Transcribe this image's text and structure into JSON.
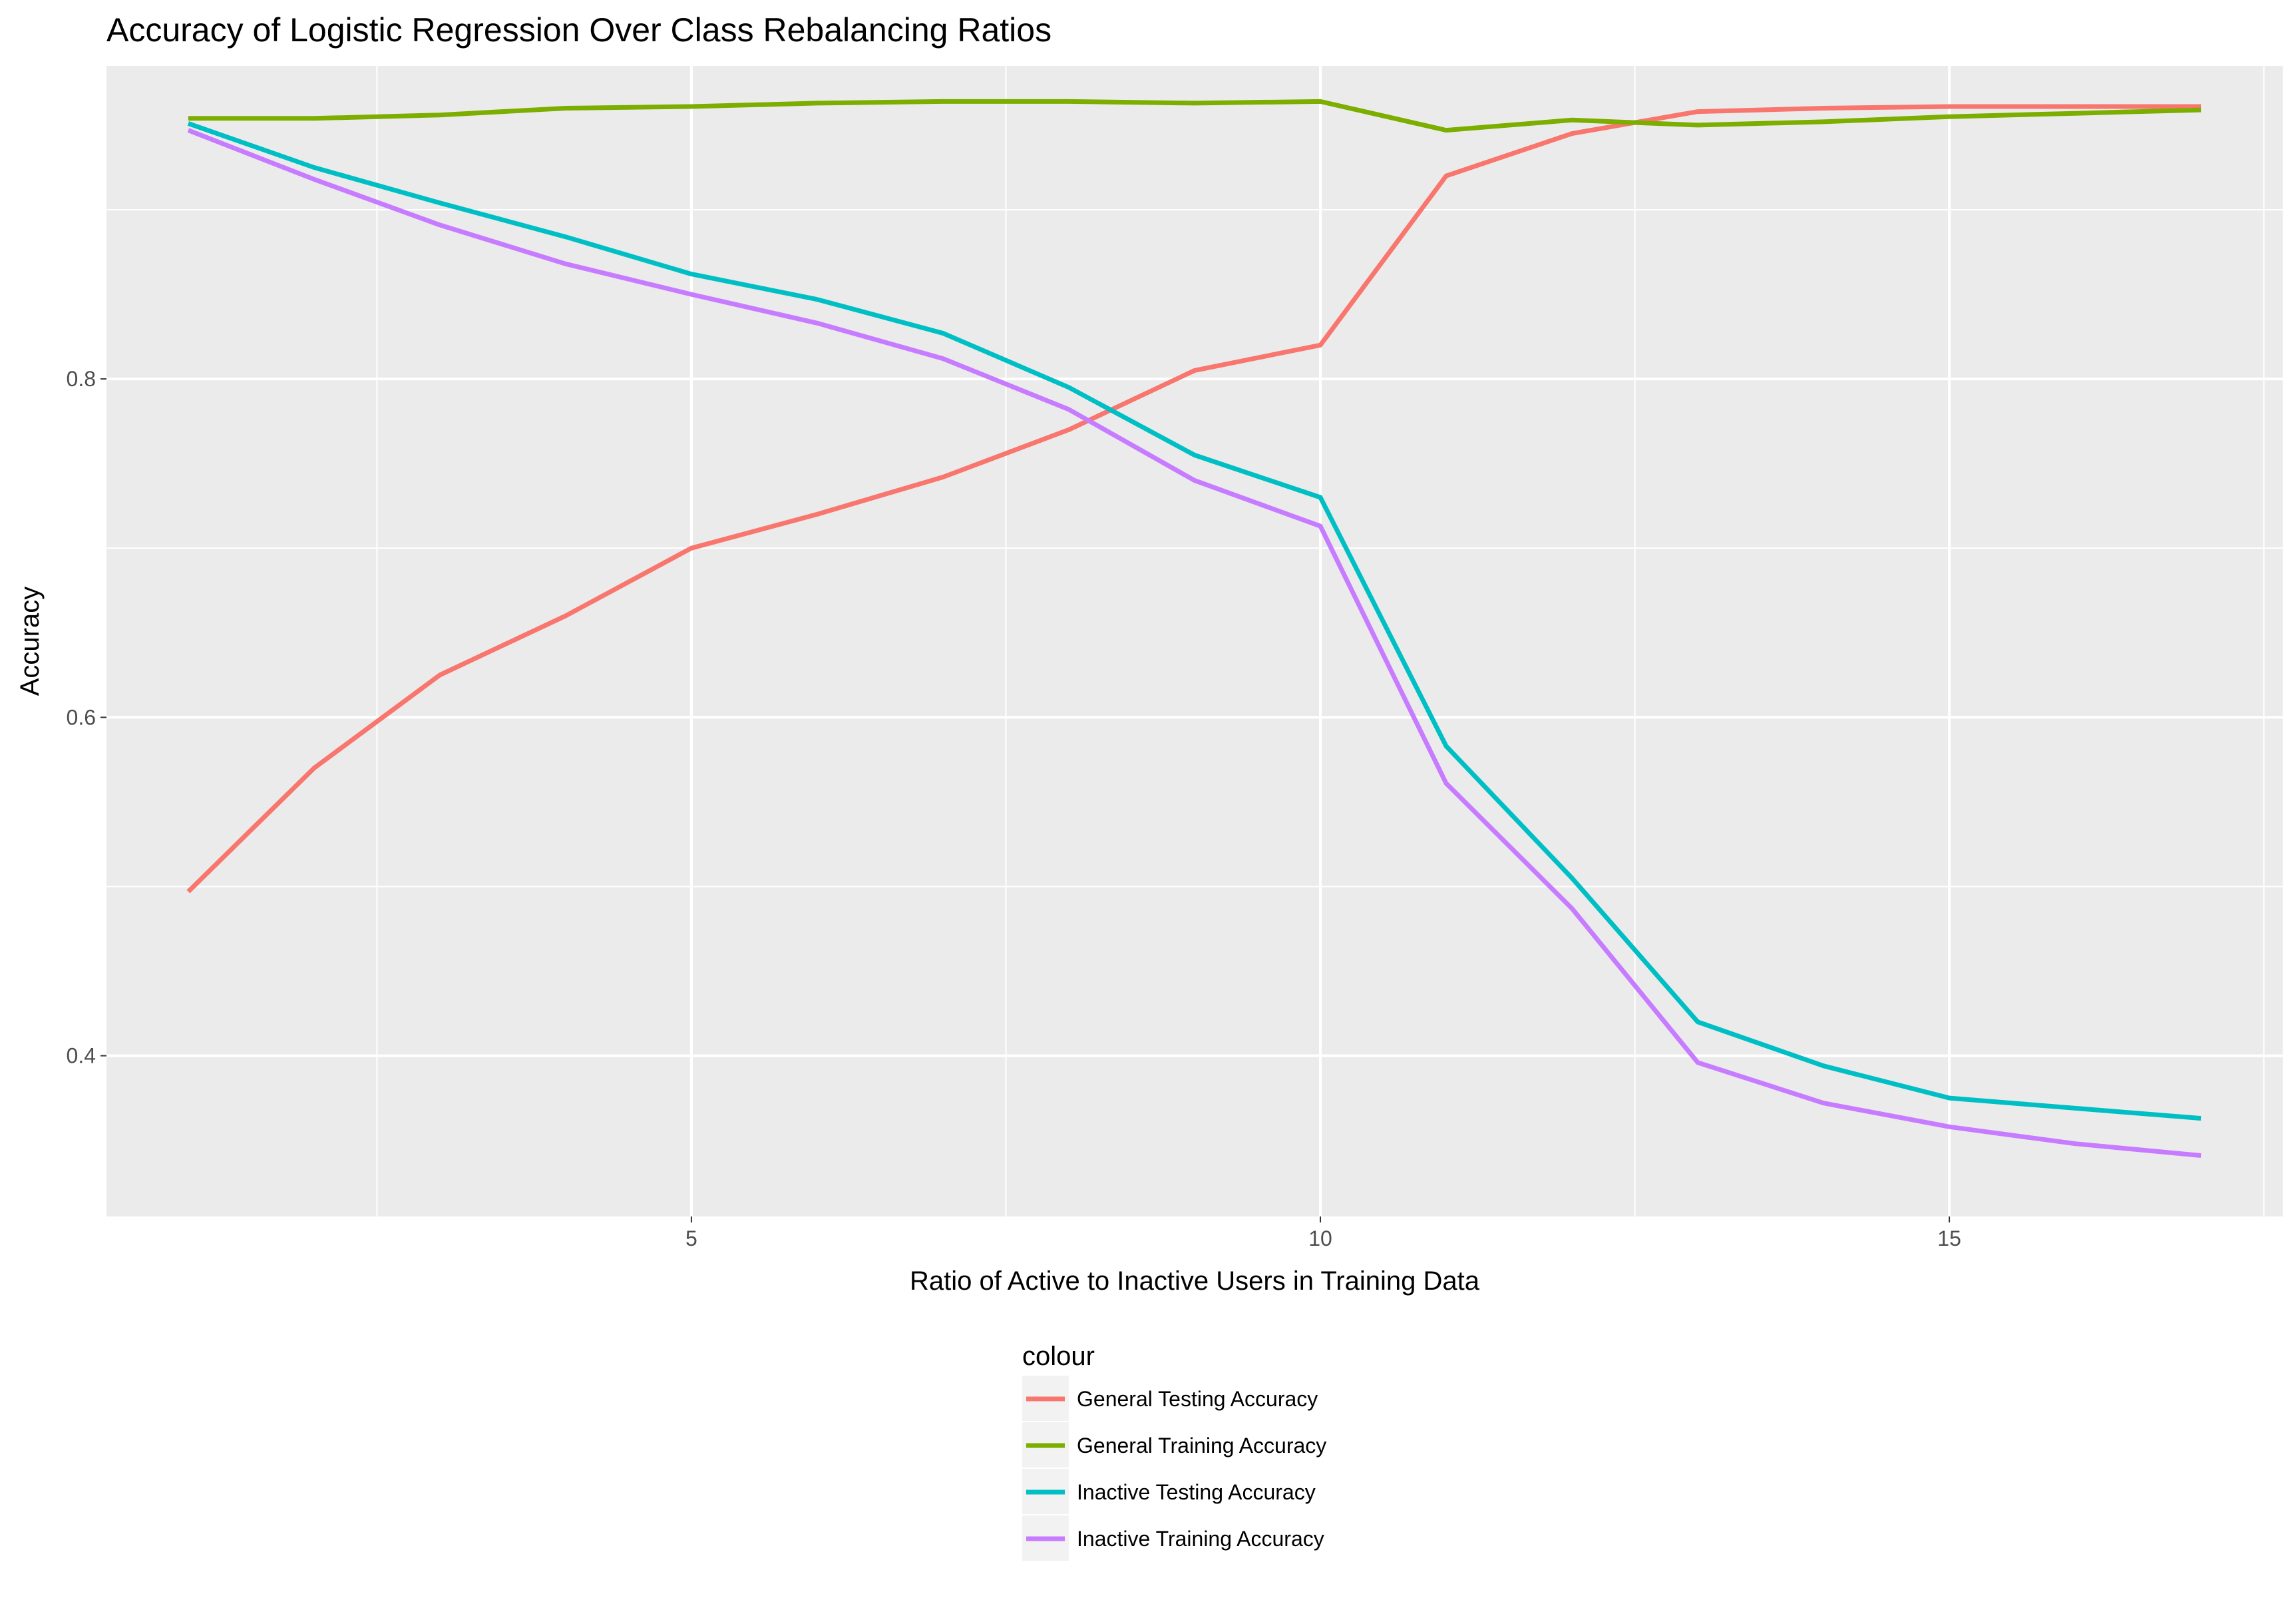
{
  "chart_data": {
    "type": "line",
    "title": "Accuracy of Logistic Regression Over Class Rebalancing Ratios",
    "xlabel": "Ratio of Active to Inactive Users in Training Data",
    "ylabel": "Accuracy",
    "xlim": [
      0.35,
      17.65
    ],
    "ylim": [
      0.305,
      0.985
    ],
    "x_ticks": [
      5,
      10,
      15
    ],
    "x_tick_labels": [
      "5",
      "10",
      "15"
    ],
    "x_minor_ticks": [
      2.5,
      7.5,
      12.5,
      17.5
    ],
    "y_ticks": [
      0.4,
      0.6,
      0.8
    ],
    "y_tick_labels": [
      "0.4",
      "0.6",
      "0.8"
    ],
    "y_minor_ticks": [
      0.3,
      0.5,
      0.7,
      0.9
    ],
    "grid": true,
    "panel_background": "#ebebeb",
    "legend_title": "colour",
    "legend_position": "bottom",
    "x": [
      1,
      2,
      3,
      4,
      5,
      6,
      7,
      8,
      9,
      10,
      11,
      12,
      13,
      14,
      15,
      16,
      17
    ],
    "series": [
      {
        "name": "General Testing Accuracy",
        "color": "#f8766d",
        "values": [
          0.497,
          0.57,
          0.625,
          0.66,
          0.7,
          0.72,
          0.742,
          0.77,
          0.805,
          0.82,
          0.92,
          0.945,
          0.958,
          0.96,
          0.961,
          0.961,
          0.961
        ]
      },
      {
        "name": "General Training Accuracy",
        "color": "#7cae00",
        "values": [
          0.954,
          0.954,
          0.956,
          0.96,
          0.961,
          0.963,
          0.964,
          0.964,
          0.963,
          0.964,
          0.947,
          0.953,
          0.95,
          0.952,
          0.955,
          0.957,
          0.959
        ]
      },
      {
        "name": "Inactive Testing Accuracy",
        "color": "#00bfc4",
        "values": [
          0.951,
          0.925,
          0.904,
          0.884,
          0.862,
          0.847,
          0.827,
          0.795,
          0.755,
          0.73,
          0.583,
          0.505,
          0.42,
          0.394,
          0.375,
          0.369,
          0.363
        ]
      },
      {
        "name": "Inactive Training Accuracy",
        "color": "#c77cff",
        "values": [
          0.947,
          0.918,
          0.891,
          0.868,
          0.85,
          0.833,
          0.812,
          0.782,
          0.74,
          0.713,
          0.561,
          0.487,
          0.396,
          0.372,
          0.358,
          0.348,
          0.341
        ]
      }
    ]
  }
}
